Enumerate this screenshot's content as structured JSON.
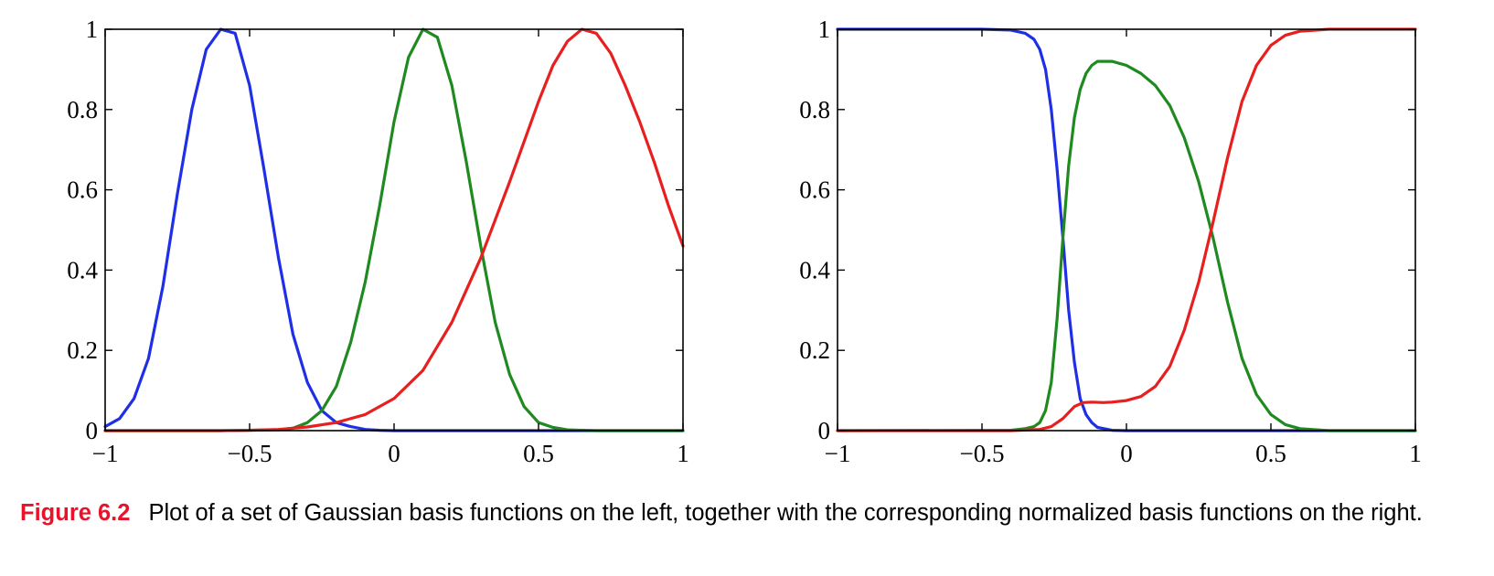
{
  "chart_data": [
    {
      "type": "line",
      "panel": "left",
      "xlim": [
        -1,
        1
      ],
      "ylim": [
        0,
        1
      ],
      "x_ticks": [
        -1,
        -0.5,
        0,
        0.5,
        1
      ],
      "x_tick_labels": [
        "−1",
        "−0.5",
        "0",
        "0.5",
        "1"
      ],
      "y_ticks": [
        0,
        0.2,
        0.4,
        0.6,
        0.8,
        1
      ],
      "y_tick_labels": [
        "0",
        "0.2",
        "0.4",
        "0.6",
        "0.8",
        "1"
      ],
      "grid": false,
      "series": [
        {
          "color": "#1f2fe6",
          "x": [
            -1,
            -0.95,
            -0.9,
            -0.85,
            -0.8,
            -0.75,
            -0.7,
            -0.65,
            -0.6,
            -0.55,
            -0.5,
            -0.45,
            -0.4,
            -0.35,
            -0.3,
            -0.25,
            -0.2,
            -0.15,
            -0.1,
            -0.05,
            0,
            0.1,
            0.2,
            0.4,
            0.6,
            0.8,
            1
          ],
          "y": [
            0.01,
            0.03,
            0.08,
            0.18,
            0.36,
            0.59,
            0.8,
            0.95,
            1.0,
            0.99,
            0.86,
            0.65,
            0.43,
            0.24,
            0.12,
            0.05,
            0.02,
            0.01,
            0.003,
            0.001,
            0,
            0,
            0,
            0,
            0,
            0,
            0
          ]
        },
        {
          "color": "#1f8a1f",
          "x": [
            -1,
            -0.6,
            -0.4,
            -0.35,
            -0.3,
            -0.25,
            -0.2,
            -0.15,
            -0.1,
            -0.05,
            0,
            0.05,
            0.1,
            0.15,
            0.2,
            0.25,
            0.3,
            0.35,
            0.4,
            0.45,
            0.5,
            0.55,
            0.6,
            0.7,
            0.8,
            1
          ],
          "y": [
            0,
            0,
            0.002,
            0.006,
            0.02,
            0.05,
            0.11,
            0.22,
            0.37,
            0.56,
            0.77,
            0.93,
            1.0,
            0.98,
            0.86,
            0.67,
            0.46,
            0.27,
            0.14,
            0.06,
            0.02,
            0.008,
            0.002,
            0,
            0,
            0
          ]
        },
        {
          "color": "#e81f1f",
          "x": [
            -1,
            -0.6,
            -0.5,
            -0.4,
            -0.3,
            -0.2,
            -0.1,
            0,
            0.1,
            0.2,
            0.3,
            0.4,
            0.5,
            0.55,
            0.6,
            0.65,
            0.7,
            0.75,
            0.8,
            0.85,
            0.9,
            0.95,
            1
          ],
          "y": [
            0,
            0,
            0.001,
            0.003,
            0.009,
            0.02,
            0.04,
            0.08,
            0.15,
            0.27,
            0.43,
            0.62,
            0.82,
            0.91,
            0.97,
            1.0,
            0.99,
            0.94,
            0.86,
            0.77,
            0.67,
            0.56,
            0.46
          ]
        }
      ]
    },
    {
      "type": "line",
      "panel": "right",
      "xlim": [
        -1,
        1
      ],
      "ylim": [
        0,
        1
      ],
      "x_ticks": [
        -1,
        -0.5,
        0,
        0.5,
        1
      ],
      "x_tick_labels": [
        "−1",
        "−0.5",
        "0",
        "0.5",
        "1"
      ],
      "y_ticks": [
        0,
        0.2,
        0.4,
        0.6,
        0.8,
        1
      ],
      "y_tick_labels": [
        "0",
        "0.2",
        "0.4",
        "0.6",
        "0.8",
        "1"
      ],
      "grid": false,
      "series": [
        {
          "color": "#1f2fe6",
          "x": [
            -1,
            -0.5,
            -0.4,
            -0.35,
            -0.32,
            -0.3,
            -0.28,
            -0.26,
            -0.24,
            -0.22,
            -0.2,
            -0.18,
            -0.16,
            -0.14,
            -0.12,
            -0.1,
            -0.05,
            0,
            0.5,
            1
          ],
          "y": [
            1,
            1,
            0.998,
            0.99,
            0.975,
            0.95,
            0.9,
            0.8,
            0.65,
            0.48,
            0.3,
            0.17,
            0.08,
            0.04,
            0.02,
            0.008,
            0.001,
            0,
            0,
            1e-09
          ]
        },
        {
          "color": "#1f8a1f",
          "x": [
            -1,
            -0.4,
            -0.35,
            -0.32,
            -0.3,
            -0.28,
            -0.26,
            -0.24,
            -0.22,
            -0.2,
            -0.18,
            -0.16,
            -0.14,
            -0.12,
            -0.1,
            -0.08,
            -0.05,
            0,
            0.05,
            0.1,
            0.15,
            0.2,
            0.25,
            0.3,
            0.35,
            0.4,
            0.45,
            0.5,
            0.55,
            0.6,
            0.7,
            1
          ],
          "y": [
            0,
            0.001,
            0.005,
            0.01,
            0.02,
            0.05,
            0.12,
            0.28,
            0.48,
            0.66,
            0.78,
            0.85,
            0.89,
            0.91,
            0.92,
            0.92,
            0.92,
            0.91,
            0.89,
            0.86,
            0.81,
            0.73,
            0.62,
            0.48,
            0.32,
            0.18,
            0.09,
            0.04,
            0.015,
            0.005,
            0,
            0
          ]
        },
        {
          "color": "#e81f1f",
          "x": [
            -1,
            -0.4,
            -0.3,
            -0.26,
            -0.22,
            -0.18,
            -0.15,
            -0.12,
            -0.08,
            -0.05,
            0,
            0.05,
            0.1,
            0.15,
            0.2,
            0.25,
            0.3,
            0.35,
            0.4,
            0.45,
            0.5,
            0.55,
            0.6,
            0.7,
            0.8,
            1
          ],
          "y": [
            0,
            0,
            0.003,
            0.01,
            0.03,
            0.06,
            0.07,
            0.071,
            0.07,
            0.071,
            0.075,
            0.085,
            0.11,
            0.16,
            0.25,
            0.37,
            0.52,
            0.68,
            0.82,
            0.91,
            0.96,
            0.985,
            0.995,
            1,
            1,
            1
          ]
        }
      ]
    }
  ],
  "caption": {
    "label": "Figure 6.2",
    "text": "Plot of a set of Gaussian basis functions on the left, together with the corresponding normalized basis functions on the right."
  }
}
